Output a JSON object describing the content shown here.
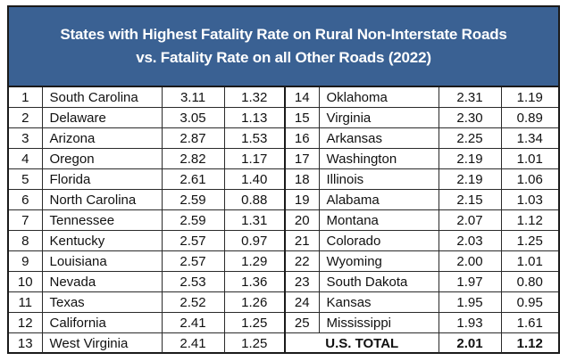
{
  "title": {
    "line1": "States with Highest Fatality Rate on Rural Non-Interstate Roads",
    "line2": "vs. Fatality Rate on all Other Roads (2022)"
  },
  "rows": [
    {
      "left": {
        "rank": "1",
        "state": "South Carolina",
        "rural": "3.11",
        "other": "1.32"
      },
      "right": {
        "rank": "14",
        "state": "Oklahoma",
        "rural": "2.31",
        "other": "1.19"
      }
    },
    {
      "left": {
        "rank": "2",
        "state": "Delaware",
        "rural": "3.05",
        "other": "1.13"
      },
      "right": {
        "rank": "15",
        "state": "Virginia",
        "rural": "2.30",
        "other": "0.89"
      }
    },
    {
      "left": {
        "rank": "3",
        "state": "Arizona",
        "rural": "2.87",
        "other": "1.53"
      },
      "right": {
        "rank": "16",
        "state": "Arkansas",
        "rural": "2.25",
        "other": "1.34"
      }
    },
    {
      "left": {
        "rank": "4",
        "state": "Oregon",
        "rural": "2.82",
        "other": "1.17"
      },
      "right": {
        "rank": "17",
        "state": "Washington",
        "rural": "2.19",
        "other": "1.01"
      }
    },
    {
      "left": {
        "rank": "5",
        "state": "Florida",
        "rural": "2.61",
        "other": "1.40"
      },
      "right": {
        "rank": "18",
        "state": "Illinois",
        "rural": "2.19",
        "other": "1.06"
      }
    },
    {
      "left": {
        "rank": "6",
        "state": "North Carolina",
        "rural": "2.59",
        "other": "0.88"
      },
      "right": {
        "rank": "19",
        "state": "Alabama",
        "rural": "2.15",
        "other": "1.03"
      }
    },
    {
      "left": {
        "rank": "7",
        "state": "Tennessee",
        "rural": "2.59",
        "other": "1.31"
      },
      "right": {
        "rank": "20",
        "state": "Montana",
        "rural": "2.07",
        "other": "1.12"
      }
    },
    {
      "left": {
        "rank": "8",
        "state": "Kentucky",
        "rural": "2.57",
        "other": "0.97"
      },
      "right": {
        "rank": "21",
        "state": "Colorado",
        "rural": "2.03",
        "other": "1.25"
      }
    },
    {
      "left": {
        "rank": "9",
        "state": "Louisiana",
        "rural": "2.57",
        "other": "1.29"
      },
      "right": {
        "rank": "22",
        "state": "Wyoming",
        "rural": "2.00",
        "other": "1.01"
      }
    },
    {
      "left": {
        "rank": "10",
        "state": "Nevada",
        "rural": "2.53",
        "other": "1.36"
      },
      "right": {
        "rank": "23",
        "state": "South Dakota",
        "rural": "1.97",
        "other": "0.80"
      }
    },
    {
      "left": {
        "rank": "11",
        "state": "Texas",
        "rural": "2.52",
        "other": "1.26"
      },
      "right": {
        "rank": "24",
        "state": "Kansas",
        "rural": "1.95",
        "other": "0.95"
      }
    },
    {
      "left": {
        "rank": "12",
        "state": "California",
        "rural": "2.41",
        "other": "1.25"
      },
      "right": {
        "rank": "25",
        "state": "Mississippi",
        "rural": "1.93",
        "other": "1.61"
      }
    }
  ],
  "last_row": {
    "left": {
      "rank": "13",
      "state": "West Virginia",
      "rural": "2.41",
      "other": "1.25"
    },
    "total": {
      "label": "U.S. TOTAL",
      "rural": "2.01",
      "other": "1.12"
    }
  },
  "colors": {
    "header_bg": "#3a6193",
    "header_text": "#ffffff"
  }
}
